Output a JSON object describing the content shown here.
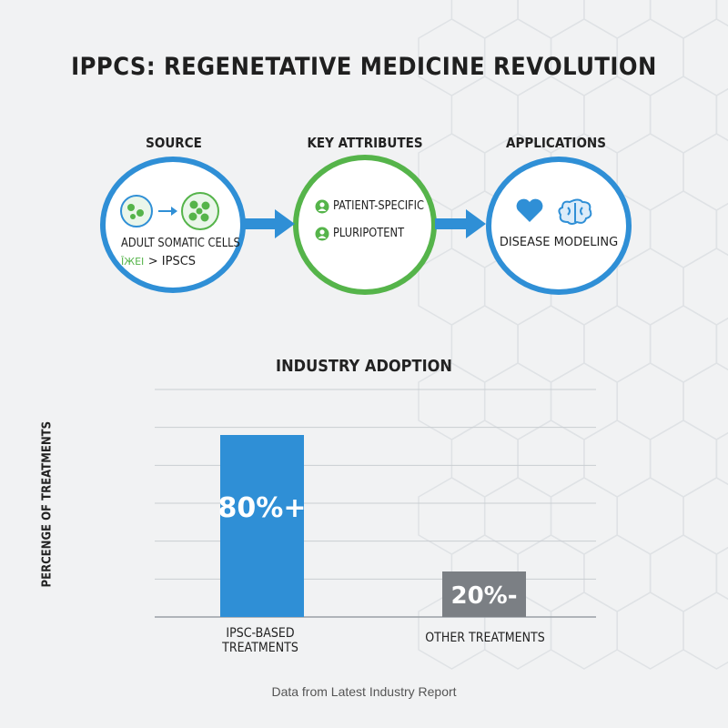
{
  "title": "IPPCS: REGENETATIVE MEDICINE REVOLUTION",
  "flow": {
    "source": {
      "heading": "SOURCE",
      "line1": "ADULT SOMATIC CELLS",
      "line2_prefix": "ĪЖEI",
      "line2": "> IPSCS"
    },
    "attributes": {
      "heading": "KEY ATTRIBUTES",
      "items": [
        "PATIENT-SPECIFIC",
        "PLURIPOTENT"
      ]
    },
    "applications": {
      "heading": "APPLICATIONS",
      "label": "DISEASE MODELING"
    }
  },
  "colors": {
    "blue": "#2f8fd6",
    "green": "#55b44a",
    "gray_bar": "#7b7f84"
  },
  "icons": [
    "cell-icon",
    "arrow-right-icon",
    "person-pin-icon",
    "heart-icon",
    "brain-icon"
  ],
  "chart_data": {
    "type": "bar",
    "title": "INDUSTRY ADOPTION",
    "ylabel": "PERCENGE OF TREATMENTS",
    "xlabel": "",
    "categories": [
      "IPSC-BASED TREATMENTS",
      "OTHER TREATMENTS"
    ],
    "values": [
      80,
      20
    ],
    "data_labels": [
      "80%+",
      "20%-"
    ],
    "bar_colors": [
      "#2f8fd6",
      "#7b7f84"
    ],
    "ylim": [
      0,
      100
    ],
    "grid": true
  },
  "footer": "Data from Latest Industry Report"
}
